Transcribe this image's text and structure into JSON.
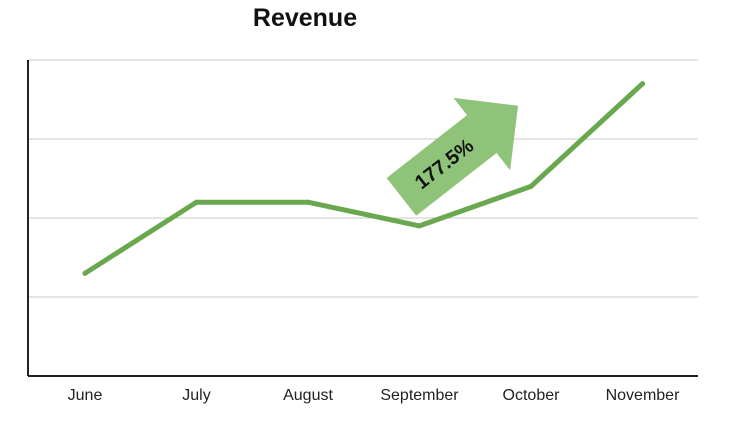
{
  "chart_data": {
    "type": "line",
    "title": "Revenue",
    "xlabel": "",
    "ylabel": "",
    "categories": [
      "June",
      "July",
      "August",
      "September",
      "October",
      "November"
    ],
    "series": [
      {
        "values": [
          13,
          22,
          22,
          19,
          24,
          37
        ]
      }
    ],
    "ylim": [
      0,
      40
    ],
    "grid": true,
    "legend": "none",
    "annotations": [
      {
        "text": "177.5%",
        "kind": "growth-arrow"
      }
    ],
    "colors": {
      "line": "#6aa84f",
      "arrow": "#8fc37a",
      "grid": "#c8c8c8",
      "axis": "#222222"
    }
  }
}
